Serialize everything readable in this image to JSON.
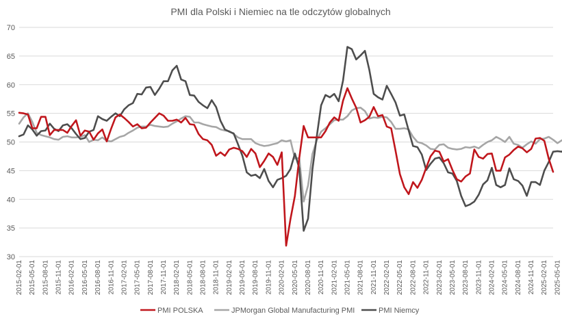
{
  "chart_data": {
    "type": "line",
    "title": "PMI dla Polski i Niemiec na tle odczytów globalnych",
    "xlabel": "",
    "ylabel": "",
    "ylim": [
      30,
      70
    ],
    "yticks": [
      30,
      35,
      40,
      45,
      50,
      55,
      60,
      65,
      70
    ],
    "grid": true,
    "legend_position": "bottom",
    "x_tick_labels": [
      "2015-02-01",
      "2015-05-01",
      "2015-08-01",
      "2015-11-01",
      "2016-02-01",
      "2016-05-01",
      "2016-08-01",
      "2016-11-01",
      "2017-02-01",
      "2017-05-01",
      "2017-08-01",
      "2017-11-01",
      "2018-02-01",
      "2018-05-01",
      "2018-08-01",
      "2018-11-01",
      "2019-02-01",
      "2019-05-01",
      "2019-08-01",
      "2019-11-01",
      "2020-02-01",
      "2020-05-01",
      "2020-08-01",
      "2020-11-01",
      "2021-02-01",
      "2021-05-01",
      "2021-08-01",
      "2021-11-01",
      "2022-02-01",
      "2022-05-01",
      "2022-08-01",
      "2022-11-01",
      "2023-02-01",
      "2023-05-01",
      "2023-08-01",
      "2023-11-01",
      "2024-02-01",
      "2024-05-01",
      "2024-08-01",
      "2024-11-01",
      "2025-02-01",
      "2025-05-01"
    ],
    "series": [
      {
        "name": "PMI POLSKA",
        "color": "#c0161c",
        "values": [
          55.1,
          55.0,
          54.8,
          52.4,
          52.4,
          54.4,
          54.4,
          51.2,
          52.1,
          52.1,
          52.1,
          51.6,
          52.8,
          53.8,
          51.1,
          52.0,
          51.8,
          50.4,
          51.5,
          52.2,
          50.1,
          52.3,
          54.3,
          54.8,
          54.2,
          53.5,
          52.7,
          53.1,
          52.4,
          52.5,
          53.4,
          54.2,
          55.0,
          54.6,
          53.7,
          53.7,
          53.9,
          53.4,
          54.2,
          53.1,
          53.0,
          51.4,
          50.5,
          50.3,
          49.5,
          47.6,
          48.2,
          47.6,
          48.7,
          49.0,
          48.8,
          48.4,
          47.4,
          48.8,
          48.0,
          45.6,
          46.7,
          48.0,
          47.4,
          46.0,
          48.2,
          31.9,
          36.6,
          40.6,
          47.2,
          52.8,
          50.8,
          50.8,
          50.8,
          50.8,
          51.9,
          53.4,
          54.3,
          53.7,
          57.2,
          59.4,
          57.6,
          56.0,
          53.4,
          53.8,
          54.4,
          56.1,
          54.5,
          54.7,
          52.7,
          52.4,
          48.5,
          44.4,
          42.1,
          40.9,
          43.0,
          42.0,
          43.4,
          45.5,
          47.5,
          48.5,
          48.3,
          46.6,
          47.0,
          45.1,
          43.5,
          43.1,
          44.0,
          44.5,
          48.7,
          47.4,
          47.1,
          47.9,
          48.0,
          45.0,
          45.0,
          47.3,
          47.8,
          48.6,
          49.2,
          48.9,
          48.2,
          48.8,
          50.6,
          50.7,
          50.2,
          47.1,
          44.8
        ]
      },
      {
        "name": "JPMorgan Global Manufacturing PMI",
        "color": "#a6a6a6",
        "values": [
          53.2,
          54.3,
          55.0,
          53.5,
          51.6,
          51.2,
          51.0,
          50.8,
          50.5,
          50.4,
          50.9,
          51.0,
          50.8,
          50.8,
          50.9,
          51.2,
          50.0,
          50.4,
          50.3,
          50.8,
          50.2,
          50.1,
          50.5,
          50.9,
          51.1,
          51.6,
          52.0,
          52.5,
          52.7,
          52.7,
          53.0,
          52.8,
          52.7,
          52.6,
          52.7,
          53.2,
          53.6,
          54.1,
          54.5,
          54.4,
          53.4,
          53.4,
          53.1,
          52.9,
          52.7,
          52.6,
          52.2,
          52.0,
          51.9,
          51.4,
          50.8,
          50.5,
          50.5,
          50.5,
          49.8,
          49.5,
          49.3,
          49.4,
          49.6,
          49.8,
          50.3,
          50.1,
          50.3,
          47.1,
          47.2,
          39.6,
          42.4,
          47.9,
          50.3,
          51.8,
          52.4,
          53.1,
          53.8,
          53.9,
          53.9,
          54.5,
          55.5,
          55.9,
          56.0,
          55.4,
          54.1,
          54.3,
          54.2,
          54.4,
          54.3,
          53.5,
          52.3,
          52.3,
          52.4,
          52.2,
          50.9,
          50.0,
          49.8,
          49.4,
          48.8,
          48.7,
          49.5,
          49.6,
          49.0,
          48.8,
          48.7,
          48.8,
          49.1,
          49.0,
          49.2,
          48.9,
          49.5,
          50.0,
          50.3,
          50.9,
          50.5,
          50.0,
          50.9,
          49.7,
          49.5,
          49.0,
          49.6,
          50.1,
          49.7,
          50.5,
          50.6,
          50.9,
          50.4,
          49.8,
          50.3
        ]
      },
      {
        "name": "PMI Niemcy",
        "color": "#4d4d4d",
        "values": [
          51.0,
          51.3,
          52.9,
          52.2,
          51.1,
          51.9,
          52.0,
          53.2,
          52.3,
          51.9,
          52.9,
          53.1,
          52.4,
          51.4,
          50.5,
          50.7,
          51.8,
          52.1,
          54.5,
          54.0,
          53.7,
          54.4,
          55.0,
          54.5,
          55.7,
          56.4,
          56.8,
          58.4,
          58.3,
          59.5,
          59.6,
          58.2,
          59.3,
          60.6,
          60.6,
          62.5,
          63.3,
          60.9,
          60.6,
          58.2,
          58.1,
          57.0,
          56.4,
          55.9,
          57.3,
          56.1,
          53.7,
          52.2,
          51.8,
          51.5,
          49.6,
          47.6,
          44.7,
          44.1,
          44.3,
          43.7,
          45.3,
          43.2,
          42.1,
          43.4,
          43.7,
          44.1,
          45.3,
          48.0,
          45.4,
          34.5,
          36.6,
          45.2,
          51.0,
          56.4,
          58.2,
          57.8,
          58.4,
          57.1,
          60.7,
          66.6,
          66.2,
          64.4,
          65.1,
          65.9,
          62.6,
          58.4,
          57.8,
          57.4,
          59.8,
          58.4,
          56.9,
          54.6,
          54.8,
          52.0,
          49.3,
          49.1,
          47.8,
          45.1,
          46.2,
          47.1,
          47.3,
          46.3,
          44.7,
          44.5,
          43.2,
          40.6,
          38.8,
          39.1,
          39.6,
          40.8,
          42.6,
          43.3,
          45.5,
          42.5,
          42.1,
          42.5,
          45.4,
          43.5,
          43.2,
          42.4,
          40.6,
          43.0,
          43.0,
          42.5,
          45.0,
          46.5,
          48.3,
          48.4,
          48.3,
          49.0
        ]
      }
    ]
  }
}
